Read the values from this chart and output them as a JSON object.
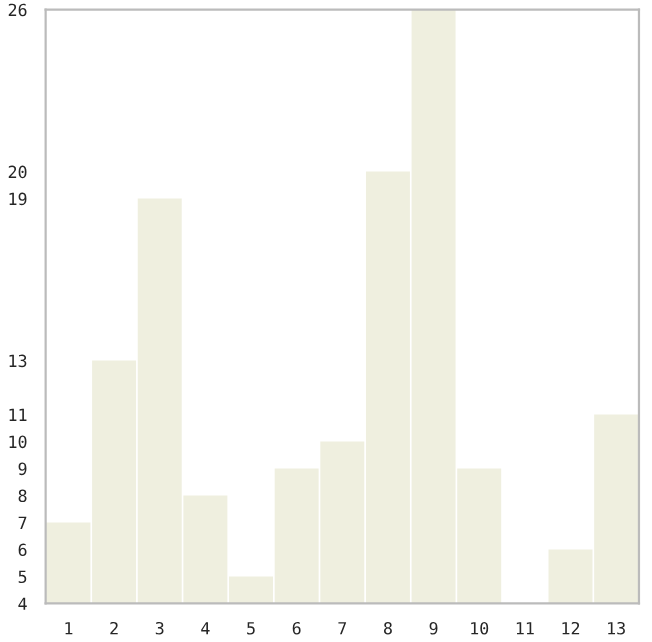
{
  "chart_data": {
    "type": "bar",
    "categories": [
      "1",
      "2",
      "3",
      "4",
      "5",
      "6",
      "7",
      "8",
      "9",
      "10",
      "11",
      "12",
      "13"
    ],
    "values": [
      7,
      13,
      19,
      8,
      5,
      9,
      10,
      20,
      26,
      9,
      4,
      6,
      11
    ],
    "color": "#efefdf",
    "ylim": [
      4,
      26
    ],
    "yticks": [
      4,
      5,
      6,
      7,
      8,
      9,
      10,
      11,
      13,
      19,
      20,
      26
    ],
    "grid": false
  }
}
